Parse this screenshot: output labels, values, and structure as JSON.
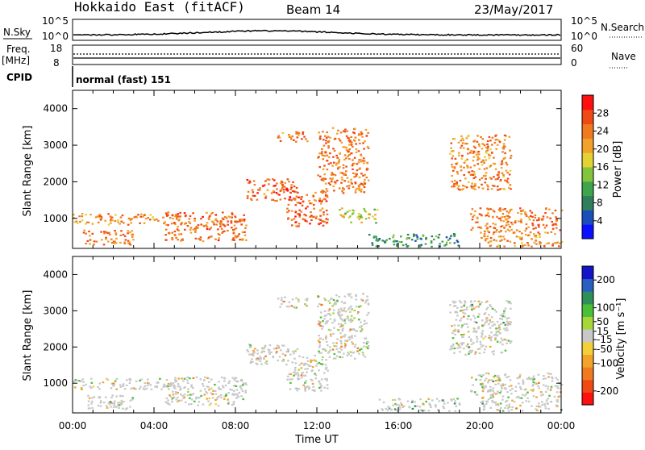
{
  "header": {
    "station": "Hokkaido East (fitACF)",
    "beam": "Beam 14",
    "date": "23/May/2017"
  },
  "top_panels": {
    "nsky_label": "N.Sky",
    "nsky_hi": "10^5",
    "nsky_lo": "10^0",
    "nsearch_label": "N.Search",
    "freq_label": "Freq.",
    "freq_unit": "[MHz]",
    "freq_hi": "18",
    "freq_lo": "8",
    "nave_label": "Nave",
    "nave_hi": "60",
    "nave_lo": "0",
    "cpid_label": "CPID",
    "cpid_text": "normal (fast) 151"
  },
  "chart_data": [
    {
      "type": "heatmap",
      "panel": "power",
      "xlabel": "Time UT",
      "ylabel": "Slant Range [km]",
      "x_ticks": [
        "00:00",
        "04:00",
        "08:00",
        "12:00",
        "16:00",
        "20:00",
        "00:00"
      ],
      "x_range_hours": [
        0,
        24
      ],
      "y_ticks": [
        1000,
        2000,
        3000,
        4000
      ],
      "y_range_km": [
        180,
        4500
      ],
      "colorbar": {
        "label": "Power [dB]",
        "ticks": [
          4,
          8,
          12,
          16,
          20,
          24,
          28
        ],
        "range": [
          0,
          32
        ],
        "colors": [
          "#0a10ff",
          "#1b4dbb",
          "#2f7f5c",
          "#3fa44c",
          "#82c43c",
          "#e3d234",
          "#f2a12a",
          "#f07a1f",
          "#ef4a15",
          "#ff1010"
        ]
      },
      "features": [
        {
          "t": [
            0.0,
            5.5
          ],
          "r_km": [
            850,
            1150
          ],
          "level": 24
        },
        {
          "t": [
            0.5,
            3.0
          ],
          "r_km": [
            300,
            700
          ],
          "level": 26
        },
        {
          "t": [
            4.5,
            8.5
          ],
          "r_km": [
            400,
            1200
          ],
          "level": 27
        },
        {
          "t": [
            8.5,
            11.0
          ],
          "r_km": [
            1500,
            2100
          ],
          "level": 28
        },
        {
          "t": [
            10.5,
            12.5
          ],
          "r_km": [
            800,
            1800
          ],
          "level": 28
        },
        {
          "t": [
            12.0,
            14.5
          ],
          "r_km": [
            1700,
            3500
          ],
          "level": 26
        },
        {
          "t": [
            10.0,
            11.5
          ],
          "r_km": [
            3100,
            3400
          ],
          "level": 25
        },
        {
          "t": [
            13.0,
            15.0
          ],
          "r_km": [
            900,
            1300
          ],
          "level": 18
        },
        {
          "t": [
            14.5,
            19.0
          ],
          "r_km": [
            250,
            600
          ],
          "level": 10
        },
        {
          "t": [
            18.5,
            21.5
          ],
          "r_km": [
            1800,
            3300
          ],
          "level": 25
        },
        {
          "t": [
            19.5,
            24.0
          ],
          "r_km": [
            700,
            1300
          ],
          "level": 26
        },
        {
          "t": [
            20.0,
            24.0
          ],
          "r_km": [
            250,
            700
          ],
          "level": 24
        }
      ]
    },
    {
      "type": "heatmap",
      "panel": "velocity",
      "xlabel": "Time UT",
      "ylabel": "Slant Range [km]",
      "x_ticks": [
        "00:00",
        "04:00",
        "08:00",
        "12:00",
        "16:00",
        "20:00",
        "00:00"
      ],
      "x_range_hours": [
        0,
        24
      ],
      "y_ticks": [
        1000,
        2000,
        3000,
        4000
      ],
      "y_range_km": [
        180,
        4500
      ],
      "colorbar": {
        "label": "Velocity [m s⁻¹]",
        "ticks": [
          200,
          100,
          50,
          15,
          -15,
          -50,
          -100,
          -200
        ],
        "range": [
          -250,
          250
        ],
        "colors": [
          "#1414c8",
          "#2a5fc0",
          "#2f8f59",
          "#4cbf3a",
          "#a6d63a",
          "#c8c8c8",
          "#f3d03a",
          "#f2a42a",
          "#f07a1f",
          "#ef4a15",
          "#ff1010"
        ]
      },
      "features": [
        {
          "t": [
            0.0,
            5.5
          ],
          "r_km": [
            850,
            1150
          ],
          "vel": 0
        },
        {
          "t": [
            0.5,
            3.0
          ],
          "r_km": [
            300,
            700
          ],
          "vel": 0
        },
        {
          "t": [
            4.5,
            8.5
          ],
          "r_km": [
            400,
            1200
          ],
          "vel": 0
        },
        {
          "t": [
            8.5,
            11.0
          ],
          "r_km": [
            1500,
            2100
          ],
          "vel": -20
        },
        {
          "t": [
            10.5,
            12.5
          ],
          "r_km": [
            800,
            1800
          ],
          "vel": 0
        },
        {
          "t": [
            12.0,
            14.5
          ],
          "r_km": [
            1700,
            3500
          ],
          "vel": -30
        },
        {
          "t": [
            10.0,
            11.5
          ],
          "r_km": [
            3100,
            3400
          ],
          "vel": -40
        },
        {
          "t": [
            15.0,
            19.0
          ],
          "r_km": [
            250,
            600
          ],
          "vel": 30
        },
        {
          "t": [
            18.5,
            21.5
          ],
          "r_km": [
            1800,
            3300
          ],
          "vel": 0
        },
        {
          "t": [
            19.5,
            24.0
          ],
          "r_km": [
            700,
            1300
          ],
          "vel": 0
        },
        {
          "t": [
            20.0,
            24.0
          ],
          "r_km": [
            250,
            700
          ],
          "vel": 0
        }
      ]
    }
  ]
}
